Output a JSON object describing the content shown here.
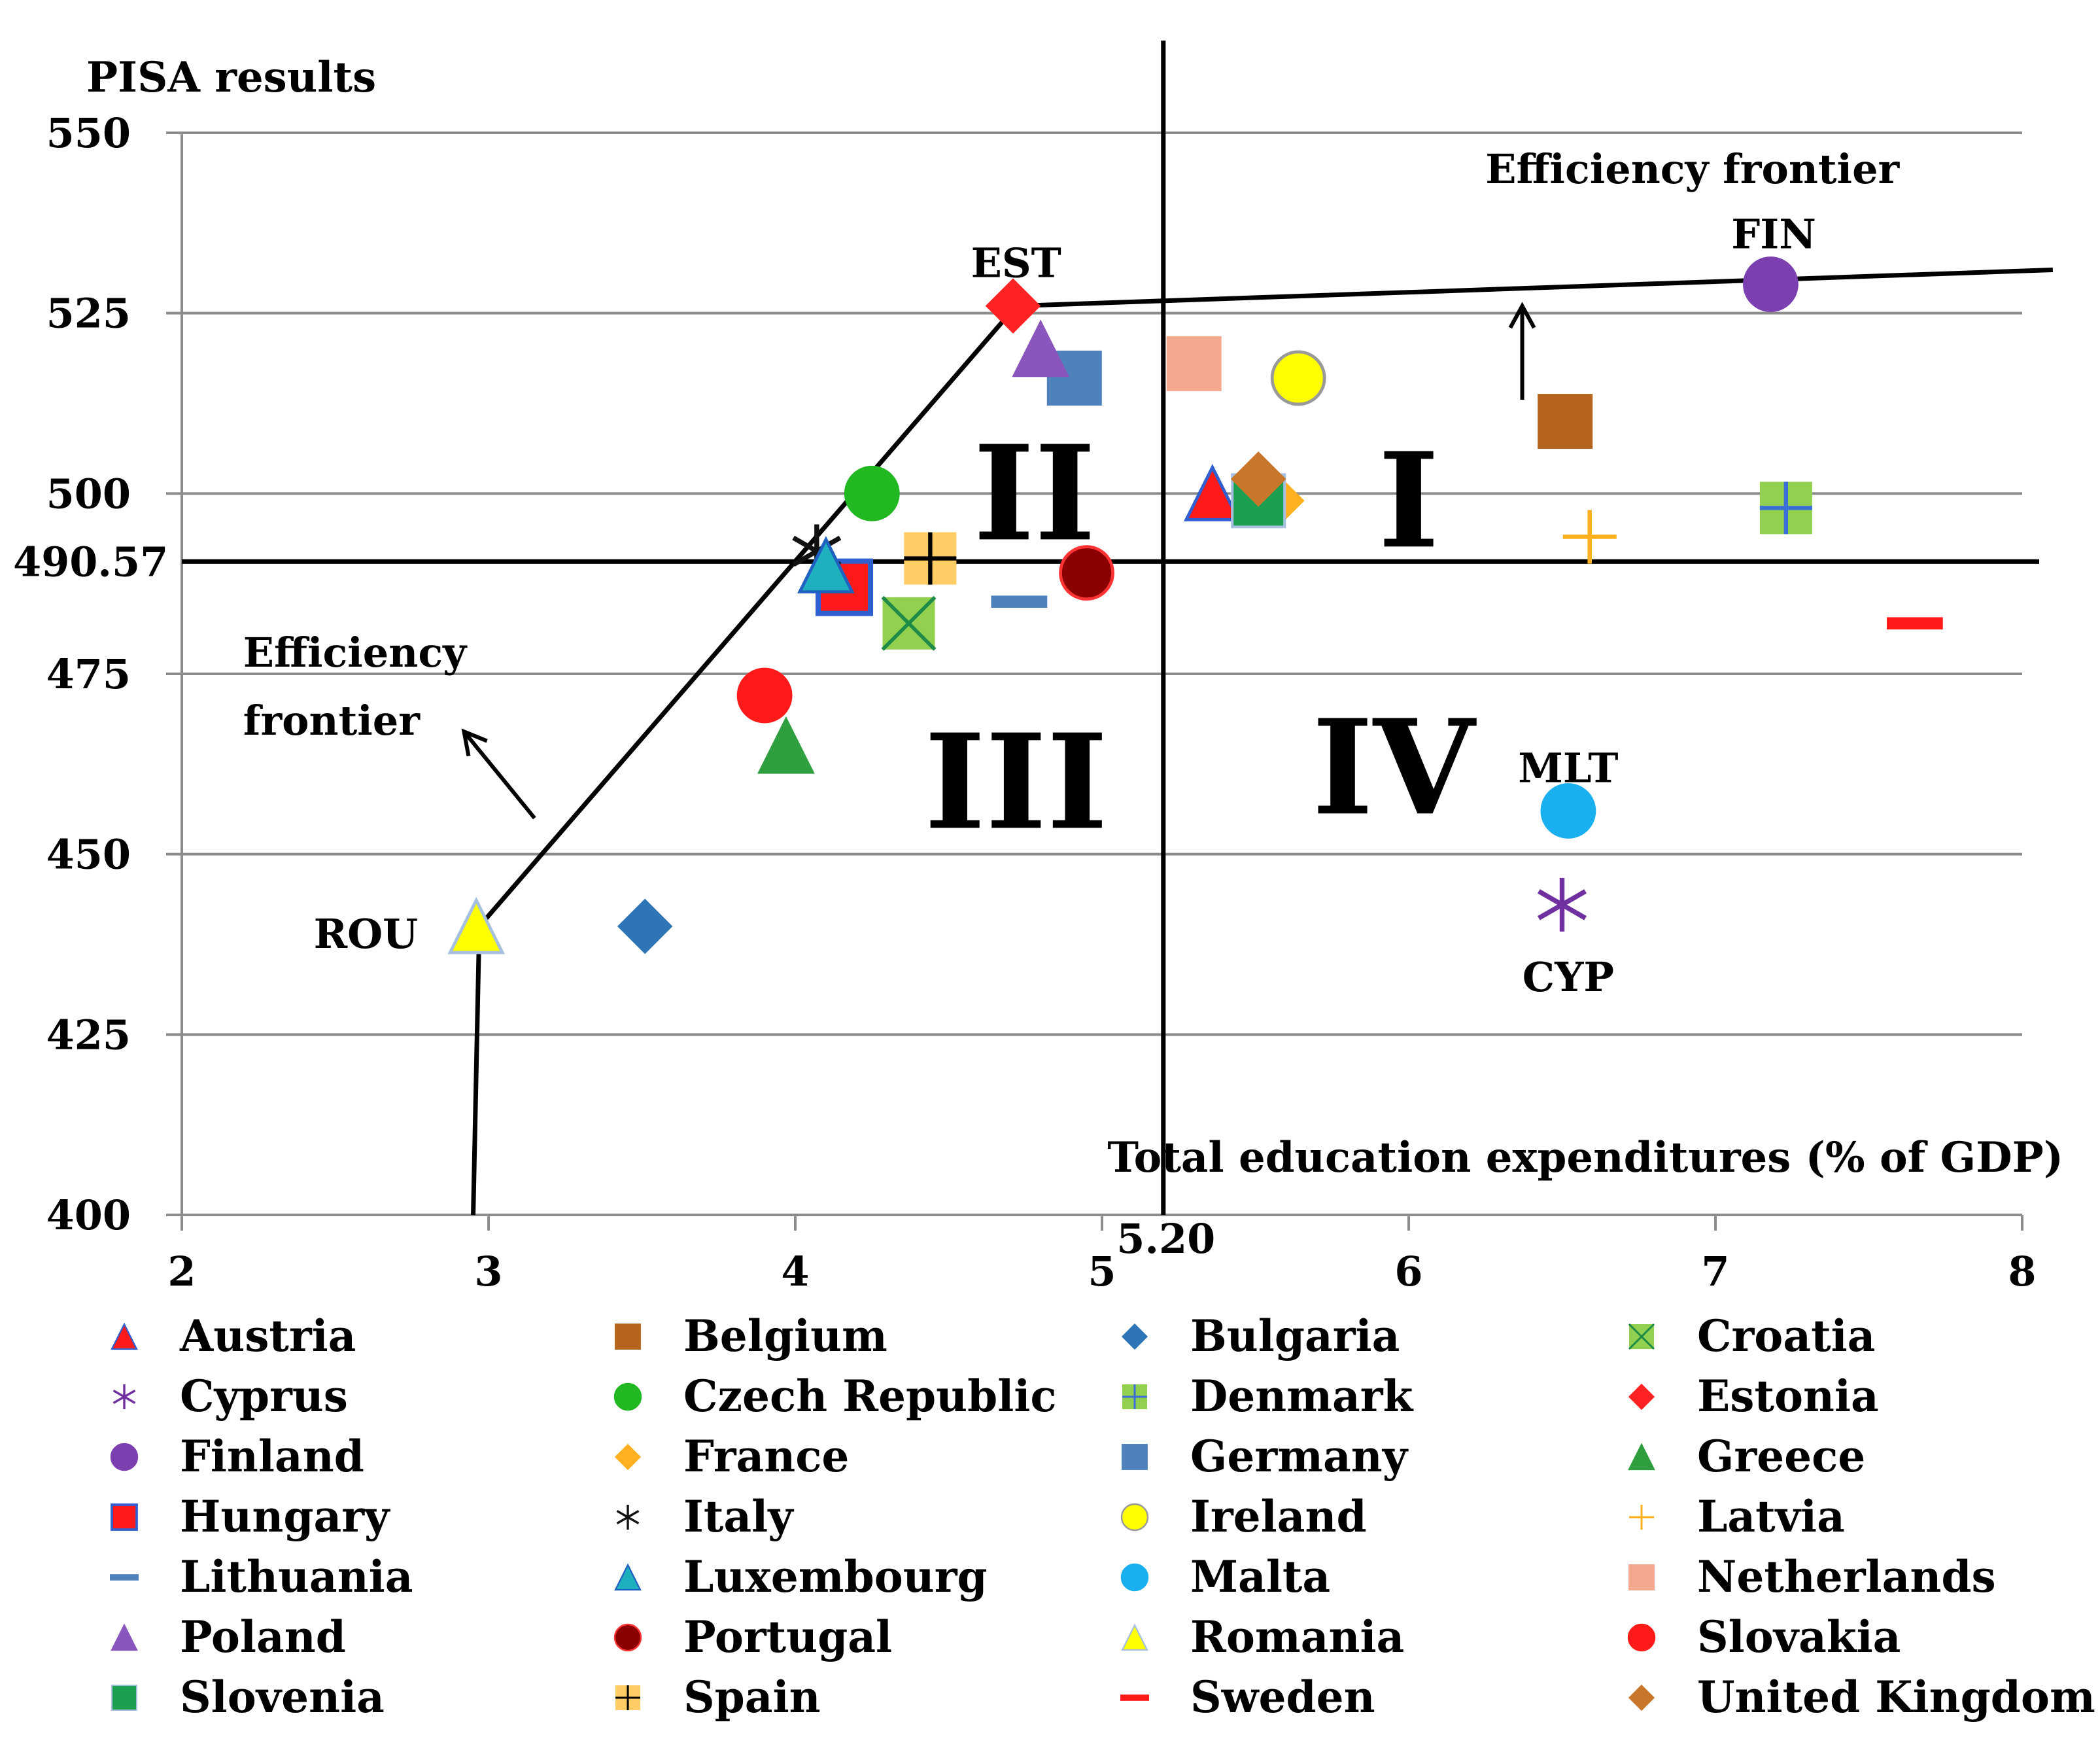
{
  "chart_data": {
    "type": "scatter",
    "ylabel": "PISA results",
    "xlabel": "Total education expenditures (% of GDP)",
    "xlim": [
      2,
      8
    ],
    "ylim": [
      400,
      550
    ],
    "x_ticks": [
      "2",
      "3",
      "4",
      "5",
      "6",
      "7",
      "8"
    ],
    "y_ticks": [
      "400",
      "425",
      "450",
      "475",
      "500",
      "525",
      "550"
    ],
    "special_x_tick": "5.20",
    "special_y_tick": "490.57",
    "grid": "horizontal",
    "thresholds": {
      "x": 5.2,
      "y": 490.57
    },
    "frontier": [
      [
        2.95,
        400
      ],
      [
        2.97,
        440
      ],
      [
        4.72,
        526
      ],
      [
        8.1,
        531
      ]
    ],
    "frontier_labels": [
      {
        "lines": [
          "Efficiency frontier"
        ],
        "x": 6.25,
        "y": 543
      },
      {
        "lines": [
          "Efficiency",
          "frontier"
        ],
        "x": 2.2,
        "y": 476
      }
    ],
    "arrows": [
      {
        "from": [
          6.37,
          513
        ],
        "to": [
          6.37,
          526
        ]
      },
      {
        "from": [
          3.15,
          455
        ],
        "to": [
          2.92,
          467
        ]
      }
    ],
    "quadrants": [
      {
        "label": "I",
        "x": 6.0,
        "y": 499
      },
      {
        "label": "II",
        "x": 4.78,
        "y": 500
      },
      {
        "label": "III",
        "x": 4.72,
        "y": 460
      },
      {
        "label": "IV",
        "x": 5.95,
        "y": 462
      }
    ],
    "point_labels": [
      {
        "text": "EST",
        "x": 4.72,
        "y": 532
      },
      {
        "text": "FIN",
        "x": 7.19,
        "y": 536
      },
      {
        "text": "ROU",
        "x": 2.6,
        "y": 439
      },
      {
        "text": "MLT",
        "x": 6.52,
        "y": 462
      },
      {
        "text": "CYP",
        "x": 6.52,
        "y": 433
      }
    ],
    "series": [
      {
        "name": "Austria",
        "marker": "triangle",
        "color": "#ff1a1a",
        "edge": "#2f5fd0",
        "x": 5.36,
        "y": 500
      },
      {
        "name": "Belgium",
        "marker": "square",
        "color": "#b5651d",
        "x": 6.51,
        "y": 510
      },
      {
        "name": "Bulgaria",
        "marker": "diamond",
        "color": "#2e75b6",
        "x": 3.51,
        "y": 440
      },
      {
        "name": "Croatia",
        "marker": "xbox",
        "color": "#92d050",
        "edge": "#1e8c46",
        "x": 4.37,
        "y": 482
      },
      {
        "name": "Cyprus",
        "marker": "asterisk",
        "color": "#7030a0",
        "x": 6.5,
        "y": 443
      },
      {
        "name": "Czech Republic",
        "marker": "circle",
        "color": "#22b822",
        "x": 4.25,
        "y": 500
      },
      {
        "name": "Denmark",
        "marker": "plusbox",
        "color": "#92d050",
        "edge": "#3a6fd8",
        "x": 7.23,
        "y": 498
      },
      {
        "name": "Estonia",
        "marker": "diamond",
        "color": "#ff2222",
        "x": 4.71,
        "y": 526
      },
      {
        "name": "Finland",
        "marker": "circle",
        "color": "#7b3fb0",
        "x": 7.18,
        "y": 529
      },
      {
        "name": "France",
        "marker": "diamond",
        "color": "#ffb020",
        "x": 5.57,
        "y": 499
      },
      {
        "name": "Germany",
        "marker": "square",
        "color": "#4f81bd",
        "x": 4.91,
        "y": 516
      },
      {
        "name": "Greece",
        "marker": "triangle",
        "color": "#2e9e3e",
        "x": 3.97,
        "y": 465
      },
      {
        "name": "Hungary",
        "marker": "hungary",
        "color": "#ff1a1a",
        "edge": "#2f5fd0",
        "x": 4.16,
        "y": 487
      },
      {
        "name": "Italy",
        "marker": "asterisk",
        "color": "#111111",
        "x": 4.07,
        "y": 492
      },
      {
        "name": "Ireland",
        "marker": "circle",
        "color": "#ffff00",
        "edge": "#999999",
        "x": 5.64,
        "y": 516
      },
      {
        "name": "Latvia",
        "marker": "plus",
        "color": "#ffb020",
        "x": 6.59,
        "y": 494
      },
      {
        "name": "Lithuania",
        "marker": "dash",
        "color": "#4f81bd",
        "x": 4.73,
        "y": 485
      },
      {
        "name": "Luxembourg",
        "marker": "triangle",
        "color": "#1fb0c0",
        "edge": "#2060c0",
        "x": 4.1,
        "y": 490
      },
      {
        "name": "Malta",
        "marker": "circle",
        "color": "#1ab0f0",
        "x": 6.52,
        "y": 456
      },
      {
        "name": "Netherlands",
        "marker": "square",
        "color": "#f4a98f",
        "x": 5.3,
        "y": 518
      },
      {
        "name": "Poland",
        "marker": "triangle",
        "color": "#8a55bd",
        "x": 4.8,
        "y": 520
      },
      {
        "name": "Portugal",
        "marker": "circle",
        "color": "#8b0000",
        "edge": "#ff3333",
        "x": 4.95,
        "y": 489
      },
      {
        "name": "Romania",
        "marker": "triangle",
        "color": "#ffff00",
        "edge": "#a8c0e0",
        "x": 2.96,
        "y": 440
      },
      {
        "name": "Slovakia",
        "marker": "circle",
        "color": "#ff1a1a",
        "x": 3.9,
        "y": 472
      },
      {
        "name": "Slovenia",
        "marker": "square",
        "color": "#1aa050",
        "edge": "#a8c0e0",
        "x": 5.51,
        "y": 499
      },
      {
        "name": "Spain",
        "marker": "plusbox",
        "color": "#ffcc66",
        "edge": "#000000",
        "x": 4.44,
        "y": 491
      },
      {
        "name": "Sweden",
        "marker": "dash",
        "color": "#ff1a1a",
        "x": 7.65,
        "y": 482
      },
      {
        "name": "United Kingdom",
        "marker": "diamond",
        "color": "#c8762a",
        "x": 5.51,
        "y": 502
      }
    ]
  }
}
